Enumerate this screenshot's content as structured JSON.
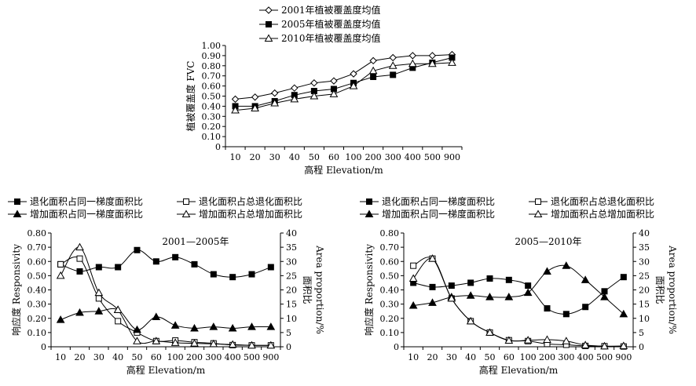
{
  "chart_data": [
    {
      "type": "line",
      "categories": [
        "10",
        "20",
        "30",
        "40",
        "50",
        "60",
        "100",
        "200",
        "300",
        "400",
        "500",
        "900"
      ],
      "ylabel": "植被覆盖度 FVC",
      "xlabel": "高程 Elevation/m",
      "ylim": [
        0,
        1.0
      ],
      "yticks": [
        "0",
        "0.10",
        "0.20",
        "0.30",
        "0.40",
        "0.50",
        "0.60",
        "0.70",
        "0.80",
        "0.90",
        "1.00"
      ],
      "legend_position": "top",
      "series": [
        {
          "name": "2001年植被覆盖度均值",
          "marker": "diamond-open",
          "values": [
            0.47,
            0.49,
            0.53,
            0.58,
            0.63,
            0.65,
            0.72,
            0.85,
            0.88,
            0.9,
            0.9,
            0.91
          ]
        },
        {
          "name": "2005年植被覆盖度均值",
          "marker": "square-filled",
          "values": [
            0.4,
            0.4,
            0.45,
            0.51,
            0.55,
            0.57,
            0.63,
            0.69,
            0.71,
            0.78,
            0.83,
            0.88
          ]
        },
        {
          "name": "2010年植被覆盖度均值",
          "marker": "triangle-open",
          "values": [
            0.36,
            0.38,
            0.43,
            0.47,
            0.5,
            0.52,
            0.6,
            0.75,
            0.8,
            0.82,
            0.82,
            0.83
          ]
        }
      ]
    },
    {
      "type": "line",
      "annotation": "2001—2005年",
      "categories": [
        "10",
        "20",
        "30",
        "40",
        "50",
        "60",
        "100",
        "200",
        "300",
        "400",
        "500",
        "900"
      ],
      "ylabel": "响应度 Responsivity",
      "y2label": "面积比 Area proportion/%",
      "y2label_cn": "面积比",
      "y2label_en": "Area proportion/%",
      "xlabel": "高程 Elevation/m",
      "ylim": [
        0,
        0.8
      ],
      "y2lim": [
        0,
        40
      ],
      "yticks": [
        "0",
        "0.10",
        "0.20",
        "0.30",
        "0.40",
        "0.50",
        "0.60",
        "0.70",
        "0.80"
      ],
      "y2ticks": [
        "0",
        "5",
        "10",
        "15",
        "20",
        "25",
        "30",
        "35",
        "40"
      ],
      "legend_position": "top",
      "series": [
        {
          "name": "退化面积占同一梯度面积比",
          "marker": "square-filled",
          "axis": "left",
          "values": [
            0.58,
            0.53,
            0.56,
            0.56,
            0.68,
            0.6,
            0.63,
            0.58,
            0.51,
            0.49,
            0.51,
            0.56
          ]
        },
        {
          "name": "退化面积占总退化面积比",
          "marker": "square-open",
          "axis": "right",
          "values": [
            29,
            31,
            17,
            9,
            5,
            2,
            2.2,
            1.6,
            1.2,
            0.6,
            0.5,
            0.5
          ]
        },
        {
          "name": "增加面积占同一梯度面积比",
          "marker": "triangle-filled",
          "axis": "left",
          "values": [
            0.19,
            0.24,
            0.25,
            0.26,
            0.12,
            0.21,
            0.15,
            0.13,
            0.14,
            0.13,
            0.14,
            0.14
          ]
        },
        {
          "name": "增加面积占总增加面积比",
          "marker": "triangle-open",
          "axis": "right",
          "values": [
            25,
            35,
            19,
            13,
            2,
            2,
            1.4,
            1.2,
            1,
            0.8,
            0.5,
            0.5
          ]
        }
      ]
    },
    {
      "type": "line",
      "annotation": "2005—2010年",
      "categories": [
        "10",
        "20",
        "30",
        "40",
        "50",
        "60",
        "100",
        "200",
        "300",
        "400",
        "500",
        "900"
      ],
      "ylabel": "响应度 Responsivity",
      "y2label": "面积比 Area proportion/%",
      "y2label_cn": "面积比",
      "y2label_en": "Area proportion/%",
      "xlabel": "高程 Elevation/m",
      "ylim": [
        0,
        0.8
      ],
      "y2lim": [
        0,
        40
      ],
      "yticks": [
        "0",
        "0.10",
        "0.20",
        "0.30",
        "0.40",
        "0.50",
        "0.60",
        "0.70",
        "0.80"
      ],
      "y2ticks": [
        "0",
        "5",
        "10",
        "15",
        "20",
        "25",
        "30",
        "35",
        "40"
      ],
      "legend_position": "top",
      "series": [
        {
          "name": "退化面积占同一梯度面积比",
          "marker": "square-filled",
          "axis": "left",
          "values": [
            0.45,
            0.42,
            0.43,
            0.45,
            0.48,
            0.47,
            0.43,
            0.27,
            0.23,
            0.28,
            0.39,
            0.49
          ]
        },
        {
          "name": "退化面积占总退化面积比",
          "marker": "square-open",
          "axis": "right",
          "values": [
            28.5,
            31,
            17,
            9,
            5,
            2.3,
            2,
            1,
            0.7,
            0.3,
            0.2,
            0.1
          ]
        },
        {
          "name": "增加面积占同一梯度面积比",
          "marker": "triangle-filled",
          "axis": "left",
          "values": [
            0.29,
            0.31,
            0.35,
            0.36,
            0.35,
            0.35,
            0.38,
            0.53,
            0.57,
            0.47,
            0.35,
            0.23
          ]
        },
        {
          "name": "增加面积占总增加面积比",
          "marker": "triangle-open",
          "axis": "right",
          "values": [
            24,
            31,
            17,
            9,
            5,
            2.2,
            2.3,
            2.5,
            2,
            0.6,
            0.2,
            0.3
          ]
        }
      ]
    }
  ]
}
